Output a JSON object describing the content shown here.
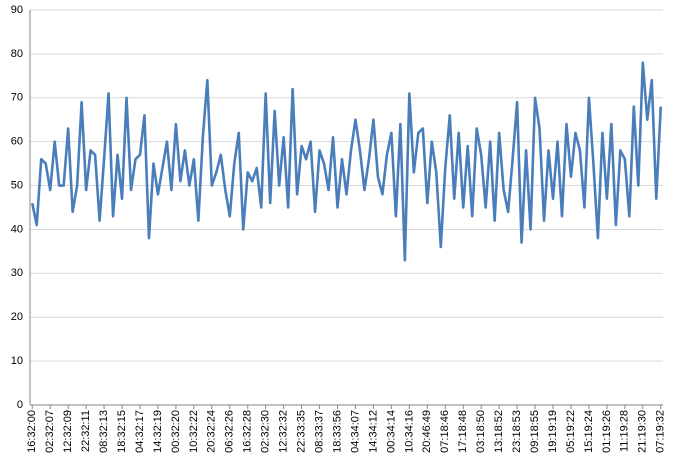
{
  "chart_data": {
    "type": "line",
    "categories": [
      "16:32:00",
      null,
      null,
      null,
      "02:32:07",
      null,
      null,
      null,
      "12:32:09",
      null,
      null,
      null,
      "22:32:11",
      null,
      null,
      null,
      "08:32:13",
      null,
      null,
      null,
      "18:32:15",
      null,
      null,
      null,
      "04:32:17",
      null,
      null,
      null,
      "14:32:19",
      null,
      null,
      null,
      "00:32:20",
      null,
      null,
      null,
      "10:32:22",
      null,
      null,
      null,
      "20:32:24",
      null,
      null,
      null,
      "06:32:26",
      null,
      null,
      null,
      "16:32:28",
      null,
      null,
      null,
      "02:32:30",
      null,
      null,
      null,
      "12:32:32",
      null,
      null,
      null,
      "22:33:35",
      null,
      null,
      null,
      "08:33:37",
      null,
      null,
      null,
      "18:33:56",
      null,
      null,
      null,
      "04:34:07",
      null,
      null,
      null,
      "14:34:12",
      null,
      null,
      null,
      "00:34:14",
      null,
      null,
      null,
      "10:34:16",
      null,
      null,
      null,
      "20:46:49",
      null,
      null,
      null,
      "07:18:46",
      null,
      null,
      null,
      "17:18:48",
      null,
      null,
      null,
      "03:18:50",
      null,
      null,
      null,
      "13:18:52",
      null,
      null,
      null,
      "23:18:53",
      null,
      null,
      null,
      "09:18:55",
      null,
      null,
      null,
      "19:19:19",
      null,
      null,
      null,
      "05:19:22",
      null,
      null,
      null,
      "15:19:24",
      null,
      null,
      null,
      "01:19:26",
      null,
      null,
      null,
      "11:19:28",
      null,
      null,
      null,
      "21:19:30",
      null,
      null,
      null,
      "07:19:32"
    ],
    "values": [
      46,
      41,
      56,
      55,
      49,
      60,
      50,
      50,
      63,
      44,
      50,
      69,
      49,
      58,
      57,
      42,
      56,
      71,
      43,
      57,
      47,
      70,
      49,
      56,
      57,
      66,
      38,
      55,
      48,
      54,
      60,
      49,
      64,
      51,
      58,
      50,
      56,
      42,
      61,
      74,
      50,
      53,
      57,
      49,
      43,
      55,
      62,
      40,
      53,
      51,
      54,
      45,
      71,
      46,
      67,
      50,
      61,
      45,
      72,
      48,
      59,
      56,
      60,
      44,
      58,
      55,
      49,
      61,
      45,
      56,
      48,
      58,
      65,
      58,
      49,
      56,
      65,
      52,
      48,
      57,
      62,
      43,
      64,
      33,
      71,
      53,
      62,
      63,
      46,
      60,
      53,
      36,
      54,
      66,
      47,
      62,
      45,
      59,
      43,
      63,
      57,
      45,
      60,
      42,
      62,
      49,
      44,
      56,
      69,
      37,
      58,
      40,
      70,
      63,
      42,
      58,
      47,
      60,
      43,
      64,
      52,
      62,
      58,
      45,
      70,
      55,
      38,
      62,
      47,
      64,
      41,
      58,
      56,
      43,
      68,
      50,
      78,
      65,
      74,
      47,
      68
    ],
    "color": "#4a7ebb",
    "ylim": [
      0,
      90
    ],
    "yticks": [
      0,
      10,
      20,
      30,
      40,
      50,
      60,
      70,
      80,
      90
    ],
    "grid": true
  }
}
